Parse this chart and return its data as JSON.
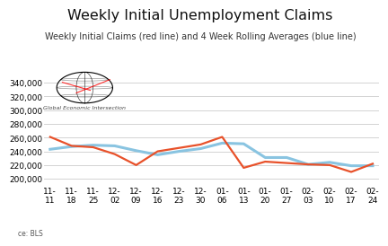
{
  "title": "Weekly Initial Unemployment Claims",
  "subtitle": "Weekly Initial Claims (red line) and 4 Week Rolling Averages (blue line)",
  "source_label": "ce: BLS",
  "x_labels": [
    "11-\n11",
    "11-\n18",
    "11-\n25",
    "12-\n02",
    "12-\n09",
    "12-\n16",
    "12-\n23",
    "12-\n30",
    "01-\n06",
    "01-\n13",
    "01-\n20",
    "01-\n27",
    "02-\n03",
    "02-\n10",
    "02-\n17",
    "02-\n24"
  ],
  "red_values": [
    261000,
    248000,
    246000,
    236000,
    220000,
    240000,
    245000,
    250000,
    261000,
    216000,
    225000,
    223000,
    221000,
    220000,
    210000,
    222000
  ],
  "blue_values": [
    243000,
    247000,
    249000,
    248000,
    241000,
    235000,
    240000,
    244000,
    252000,
    251000,
    231000,
    231000,
    221000,
    224000,
    219000,
    219000
  ],
  "ylim": [
    190000,
    360000
  ],
  "yticks": [
    200000,
    220000,
    240000,
    260000,
    280000,
    300000,
    320000,
    340000
  ],
  "red_color": "#e8512a",
  "blue_color": "#89c4e1",
  "title_fontsize": 11.5,
  "subtitle_fontsize": 7,
  "tick_fontsize": 6.5,
  "source_fontsize": 5.5,
  "bg_color": "#ffffff",
  "grid_color": "#cccccc"
}
